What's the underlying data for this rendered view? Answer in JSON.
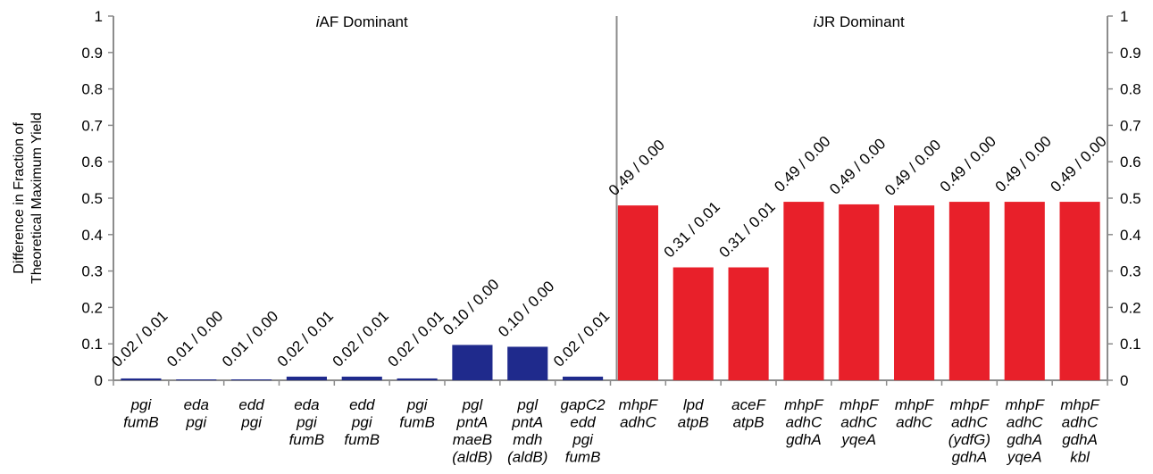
{
  "chart_data": {
    "type": "bar",
    "ylabel": [
      "Difference in Fraction of",
      "Theoretical Maximum Yield"
    ],
    "ylim": [
      0,
      1
    ],
    "yticks": [
      "0",
      "0.1",
      "0.2",
      "0.3",
      "0.4",
      "0.5",
      "0.6",
      "0.7",
      "0.8",
      "0.9",
      "1"
    ],
    "sections": [
      {
        "label_italic": "i",
        "label_rest": "AF Dominant",
        "bars": 9
      },
      {
        "label_italic": "i",
        "label_rest": "JR Dominant",
        "bars": 9
      }
    ],
    "categories": [
      [
        "pgi",
        "fumB"
      ],
      [
        "eda",
        "pgi"
      ],
      [
        "edd",
        "pgi"
      ],
      [
        "eda",
        "pgi",
        "fumB"
      ],
      [
        "edd",
        "pgi",
        "fumB"
      ],
      [
        "pgi",
        "fumB"
      ],
      [
        "pgl",
        "pntA",
        "maeB",
        "(aldB)"
      ],
      [
        "pgl",
        "pntA",
        "mdh",
        "(aldB)"
      ],
      [
        "gapC2",
        "edd",
        "pgi",
        "fumB"
      ],
      [
        "mhpF",
        "adhC"
      ],
      [
        "lpd",
        "atpB"
      ],
      [
        "aceF",
        "atpB"
      ],
      [
        "mhpF",
        "adhC",
        "gdhA"
      ],
      [
        "mhpF",
        "adhC",
        "yqeA"
      ],
      [
        "mhpF",
        "adhC"
      ],
      [
        "mhpF",
        "adhC",
        "(ydfG)",
        "gdhA"
      ],
      [
        "mhpF",
        "adhC",
        "gdhA",
        "yqeA"
      ],
      [
        "mhpF",
        "adhC",
        "gdhA",
        "kbl"
      ]
    ],
    "values": [
      0.005,
      0.001,
      0.001,
      0.01,
      0.01,
      0.005,
      0.097,
      0.092,
      0.01,
      0.48,
      0.31,
      0.31,
      0.49,
      0.483,
      0.48,
      0.49,
      0.49,
      0.49
    ],
    "data_labels": [
      "0.02 / 0.01",
      "0.01 / 0.00",
      "0.01 / 0.00",
      "0.02 / 0.01",
      "0.02 / 0.01",
      "0.02 / 0.01",
      "0.10 / 0.00",
      "0.10 / 0.00",
      "0.02 / 0.01",
      "0.49 / 0.00",
      "0.31 / 0.01",
      "0.31 / 0.01",
      "0.49 / 0.00",
      "0.49 / 0.00",
      "0.49 / 0.00",
      "0.49 / 0.00",
      "0.49 / 0.00",
      "0.49 / 0.00"
    ],
    "colors": {
      "iAF": "#1f2a8c",
      "iJR": "#e8202a",
      "axis": "#8c8c8c"
    },
    "grid": false
  }
}
